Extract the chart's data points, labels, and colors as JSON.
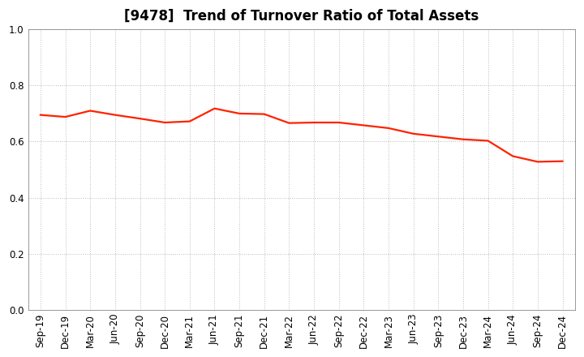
{
  "title": "[9478]  Trend of Turnover Ratio of Total Assets",
  "labels": [
    "Sep-19",
    "Dec-19",
    "Mar-20",
    "Jun-20",
    "Sep-20",
    "Dec-20",
    "Mar-21",
    "Jun-21",
    "Sep-21",
    "Dec-21",
    "Mar-22",
    "Jun-22",
    "Sep-22",
    "Dec-22",
    "Mar-23",
    "Jun-23",
    "Sep-23",
    "Dec-23",
    "Mar-24",
    "Jun-24",
    "Sep-24",
    "Dec-24"
  ],
  "values": [
    0.695,
    0.688,
    0.71,
    0.695,
    0.682,
    0.668,
    0.672,
    0.718,
    0.7,
    0.698,
    0.666,
    0.668,
    0.668,
    0.658,
    0.648,
    0.628,
    0.618,
    0.608,
    0.603,
    0.548,
    0.528,
    0.53
  ],
  "line_color": "#ff2200",
  "line_width": 1.6,
  "ylim": [
    0.0,
    1.0
  ],
  "yticks": [
    0.0,
    0.2,
    0.4,
    0.6,
    0.8,
    1.0
  ],
  "grid_color": "#bbbbbb",
  "bg_color": "#ffffff",
  "plot_bg_color": "#ffffff",
  "title_fontsize": 12,
  "tick_fontsize": 8.5
}
